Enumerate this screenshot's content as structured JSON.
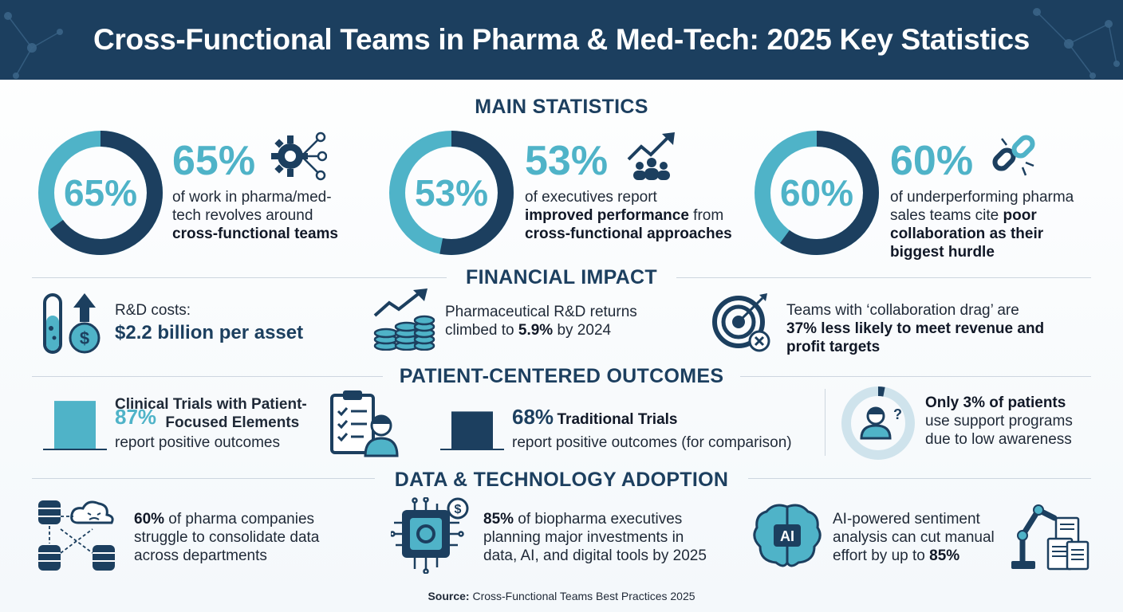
{
  "header": {
    "title": "Cross-Functional Teams in Pharma & Med-Tech: 2025 Key Statistics"
  },
  "main_statistics": {
    "title": "MAIN STATISTICS",
    "items": [
      {
        "donut_label": "65%",
        "value": 65,
        "pct": "65%",
        "line1": "of work in pharma/med-",
        "line2": "tech revolves around",
        "bold": "cross-functional teams",
        "icon": "gear-network-icon"
      },
      {
        "donut_label": "53%",
        "value": 53,
        "pct": "53%",
        "line1": "of executives report",
        "bold1": "improved performance",
        "line2_rest": " from",
        "bold2": "cross-functional approaches",
        "icon": "growth-team-icon"
      },
      {
        "donut_label": "60%",
        "value": 60,
        "pct": "60%",
        "line1": "of underperforming pharma",
        "line2": "sales teams cite ",
        "bold1": "poor",
        "bold2": "collaboration as their",
        "bold3": "biggest hurdle",
        "icon": "broken-link-icon"
      }
    ]
  },
  "financial_impact": {
    "title": "FINANCIAL IMPACT",
    "items": [
      {
        "label": "R&D costs:",
        "value": "$2.2 billion per asset",
        "icon": "test-tube-dollar-icon"
      },
      {
        "line1": "Pharmaceutical R&D returns",
        "line2_pre": "climbed to ",
        "bold": "5.9%",
        "line2_post": " by 2024",
        "icon": "coins-growth-icon"
      },
      {
        "line1": "Teams with ‘collaboration drag’ are",
        "pct": "37%",
        "bold1": " less likely to meet revenue and",
        "bold2": "profit targets",
        "icon": "target-miss-icon"
      }
    ]
  },
  "patient_outcomes": {
    "title": "PATIENT-CENTERED OUTCOMES",
    "items": [
      {
        "pct": "87%",
        "value": 87,
        "title_line1": "Clinical Trials with Patient-",
        "title_line2": "Focused Elements",
        "desc": "report positive outcomes",
        "color": "#4fb3c8"
      },
      {
        "pct": "68%",
        "value": 68,
        "title": "Traditional Trials",
        "desc": "report positive outcomes (for comparison)",
        "color": "#1c3f5f"
      },
      {
        "pre": "Only ",
        "pct": "3%",
        "post": " of patients",
        "line2": "use support programs",
        "line3": "due to low awareness",
        "value": 3
      }
    ],
    "clipboard_icon": "clipboard-doctor-icon",
    "question_icon": "person-question-icon"
  },
  "data_technology": {
    "title": "DATA & TECHNOLOGY ADOPTION",
    "items": [
      {
        "pct": "60%",
        "line1_rest": " of pharma companies",
        "line2": "struggle to consolidate data",
        "line3": "across departments",
        "icon": "database-cloud-icon"
      },
      {
        "pct": "85%",
        "line1_rest": " of biopharma executives",
        "line2": "planning major investments in",
        "line3": "data, AI, and digital tools by 2025",
        "icon": "chip-dollar-icon"
      },
      {
        "line1": "AI-powered sentiment",
        "line2": "analysis can cut manual",
        "line3_pre": "effort by up to ",
        "pct": "85%",
        "icon": "ai-brain-icon",
        "icon2": "robot-arm-docs-icon",
        "ai_label": "AI"
      }
    ]
  },
  "source": {
    "label": "Source:",
    "text": " Cross-Functional Teams Best Practices 2025"
  },
  "colors": {
    "navy": "#1c3f5f",
    "teal": "#4fb3c8",
    "light_teal": "#7fcbdb"
  }
}
